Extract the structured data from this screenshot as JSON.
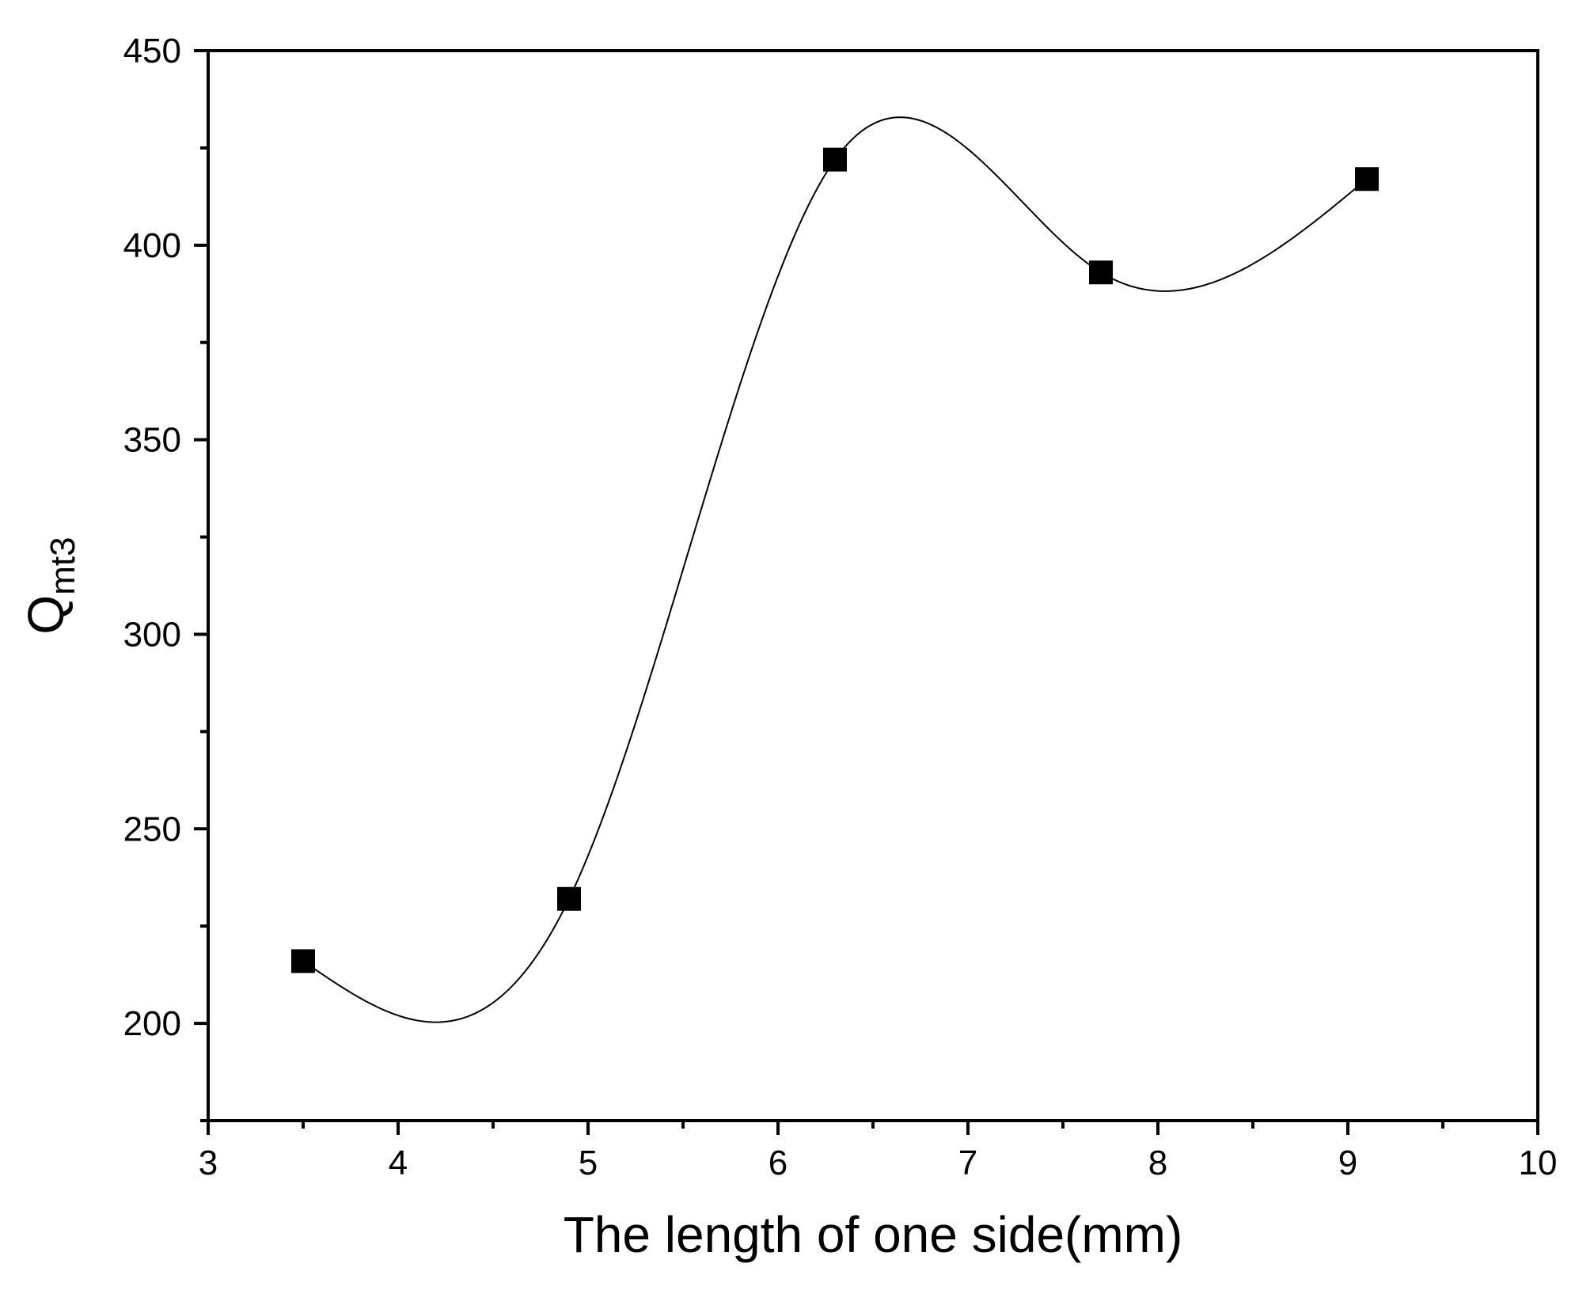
{
  "chart_data": {
    "type": "scatter",
    "xlabel": "The length of one side(mm)",
    "ylabel": {
      "main": "Q",
      "subscript": "mt3"
    },
    "xlim": [
      3,
      10
    ],
    "ylim": [
      175,
      450
    ],
    "x_ticks": [
      "3",
      "4",
      "5",
      "6",
      "7",
      "8",
      "9",
      "10"
    ],
    "y_ticks": [
      "200",
      "250",
      "300",
      "350",
      "400",
      "450"
    ],
    "grid": false,
    "legend": "none",
    "series": [
      {
        "x": [
          3.5,
          4.9,
          6.3,
          7.7,
          9.1
        ],
        "y": [
          216,
          232,
          422,
          393,
          417
        ],
        "marker": "square",
        "line": "smooth spline",
        "color": "#000000"
      }
    ]
  }
}
